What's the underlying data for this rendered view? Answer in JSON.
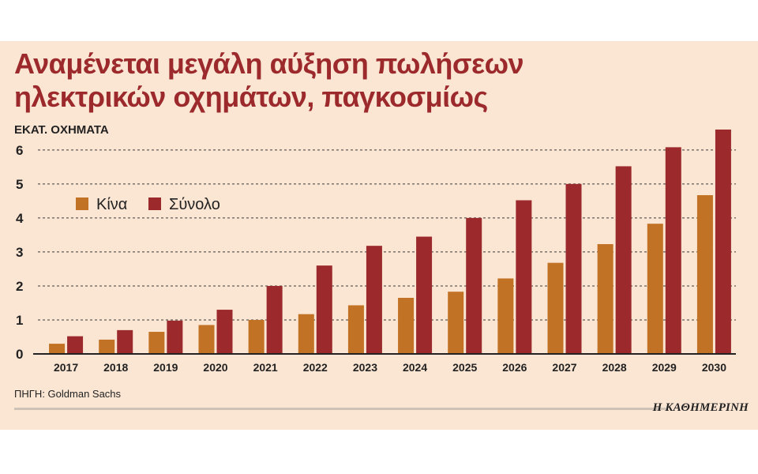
{
  "title_lines": [
    "Αναμένεται μεγάλη αύξηση πωλήσεων",
    "ηλεκτρικών οχημάτων, παγκοσμίως"
  ],
  "source": "ΠΗΓΗ: Goldman Sachs",
  "brand": "Η ΚΑΘΗΜΕΡΙΝΗ",
  "colors": {
    "background": "#fbe5d3",
    "title": "#9c2a2d",
    "china": "#c27224",
    "total": "#9c2a2d",
    "grid": "#3a3a3a"
  },
  "chart_data": {
    "type": "bar",
    "ylabel": "ΕΚΑΤ. ΟΧΗΜΑΤΑ",
    "xlabel": "",
    "ylim": [
      0,
      6.6
    ],
    "yticks": [
      0,
      1,
      2,
      3,
      4,
      5,
      6
    ],
    "grid": "horizontal dashed",
    "legend": "top-left",
    "categories": [
      "2017",
      "2018",
      "2019",
      "2020",
      "2021",
      "2022",
      "2023",
      "2024",
      "2025",
      "2026",
      "2027",
      "2028",
      "2029",
      "2030"
    ],
    "series": [
      {
        "name": "Κίνα",
        "color": "#c27224",
        "values": [
          0.3,
          0.42,
          0.65,
          0.85,
          1.0,
          1.17,
          1.43,
          1.65,
          1.83,
          2.22,
          2.68,
          3.23,
          3.83,
          4.67
        ]
      },
      {
        "name": "Σύνολο",
        "color": "#9c2a2d",
        "values": [
          0.52,
          0.7,
          0.98,
          1.3,
          2.0,
          2.6,
          3.18,
          3.45,
          4.0,
          4.52,
          5.0,
          5.52,
          6.08,
          6.6
        ]
      }
    ]
  }
}
